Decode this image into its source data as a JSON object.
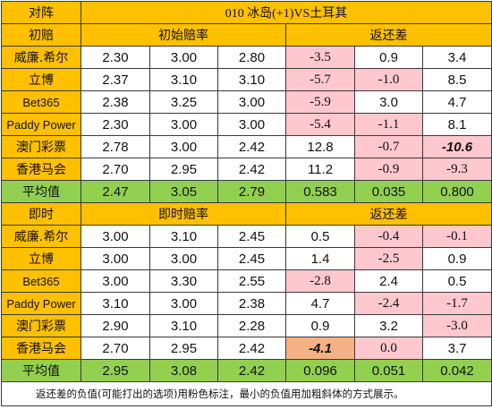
{
  "title": "010 冰岛(+1)VS土耳其",
  "corner_label": "对阵",
  "initial": {
    "section_label": "初赔",
    "odds_header": "初始赔率",
    "return_header": "返还差",
    "rows": [
      {
        "book": "威廉.希尔",
        "odds": [
          "2.30",
          "3.00",
          "2.80"
        ],
        "ret": [
          "-3.5",
          "0.9",
          "3.4"
        ]
      },
      {
        "book": "立博",
        "odds": [
          "2.37",
          "3.10",
          "3.10"
        ],
        "ret": [
          "-5.7",
          "-1.0",
          "8.5"
        ]
      },
      {
        "book": "Bet365",
        "odds": [
          "2.38",
          "3.25",
          "3.00"
        ],
        "ret": [
          "-5.9",
          "3.0",
          "4.7"
        ]
      },
      {
        "book": "Paddy Power",
        "odds": [
          "2.30",
          "3.00",
          "3.00"
        ],
        "ret": [
          "-5.4",
          "-1.1",
          "8.1"
        ]
      },
      {
        "book": "澳门彩票",
        "odds": [
          "2.78",
          "3.00",
          "2.42"
        ],
        "ret": [
          "12.8",
          "-0.7",
          "-10.6"
        ]
      },
      {
        "book": "香港马会",
        "odds": [
          "2.70",
          "2.95",
          "2.42"
        ],
        "ret": [
          "11.2",
          "-0.9",
          "-9.3"
        ]
      }
    ],
    "avg": {
      "label": "平均值",
      "odds": [
        "2.47",
        "3.05",
        "2.79"
      ],
      "ret": [
        "0.583",
        "0.035",
        "0.800"
      ]
    }
  },
  "live": {
    "section_label": "即时",
    "odds_header": "即时赔率",
    "return_header": "返还差",
    "rows": [
      {
        "book": "威廉.希尔",
        "odds": [
          "3.00",
          "3.10",
          "2.45"
        ],
        "ret": [
          "0.5",
          "-0.4",
          "-0.1"
        ]
      },
      {
        "book": "立博",
        "odds": [
          "3.00",
          "3.00",
          "2.45"
        ],
        "ret": [
          "1.4",
          "-2.5",
          "0.9"
        ]
      },
      {
        "book": "Bet365",
        "odds": [
          "3.00",
          "3.30",
          "2.55"
        ],
        "ret": [
          "-2.8",
          "2.4",
          "0.5"
        ]
      },
      {
        "book": "Paddy Power",
        "odds": [
          "3.10",
          "3.00",
          "2.38"
        ],
        "ret": [
          "4.7",
          "-2.4",
          "-1.7"
        ]
      },
      {
        "book": "澳门彩票",
        "odds": [
          "2.90",
          "3.10",
          "2.28"
        ],
        "ret": [
          "0.9",
          "3.2",
          "-3.0"
        ]
      },
      {
        "book": "香港马会",
        "odds": [
          "2.70",
          "2.95",
          "2.42"
        ],
        "ret": [
          "-4.1",
          "0.0",
          "3.7"
        ]
      }
    ],
    "avg": {
      "label": "平均值",
      "odds": [
        "2.95",
        "3.08",
        "2.42"
      ],
      "ret": [
        "0.096",
        "0.051",
        "0.042"
      ]
    }
  },
  "note": "返还差的负值(可能打出的选项)用粉色标注，最小的负值用加粗斜体的方式展示。",
  "colors": {
    "header": "#ffc000",
    "average": "#92d050",
    "negative": "#ffc7ce",
    "minimum_highlight": "#f4b183"
  }
}
